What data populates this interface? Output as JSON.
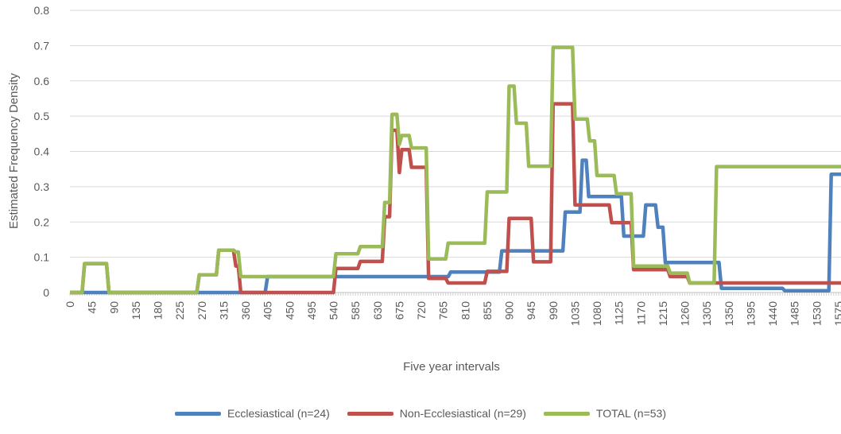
{
  "chart_data": {
    "type": "line",
    "title": "",
    "xlabel": "Five year intervals",
    "ylabel": "Estimated Frequency Density",
    "ylim": [
      0,
      0.8
    ],
    "xlim": [
      0,
      1580
    ],
    "y_ticks": [
      "0",
      "0.1",
      "0.2",
      "0.3",
      "0.4",
      "0.5",
      "0.6",
      "0.7",
      "0.8"
    ],
    "x_ticks": [
      "0",
      "45",
      "90",
      "135",
      "180",
      "225",
      "270",
      "315",
      "360",
      "405",
      "450",
      "495",
      "540",
      "585",
      "630",
      "675",
      "720",
      "765",
      "810",
      "855",
      "900",
      "945",
      "990",
      "1035",
      "1080",
      "1125",
      "1170",
      "1215",
      "1260",
      "1305",
      "1350",
      "1395",
      "1440",
      "1485",
      "1530",
      "1575"
    ],
    "grid": true,
    "legend_position": "bottom",
    "series": [
      {
        "name": "Ecclesiastical (n=24)",
        "color": "#4F81BD",
        "points": [
          [
            0,
            0
          ],
          [
            400,
            0
          ],
          [
            405,
            0.045
          ],
          [
            415,
            0.045
          ],
          [
            585,
            0.045
          ],
          [
            590,
            0.045
          ],
          [
            775,
            0.045
          ],
          [
            780,
            0.058
          ],
          [
            880,
            0.058
          ],
          [
            885,
            0.118
          ],
          [
            955,
            0.118
          ],
          [
            960,
            0.118
          ],
          [
            1010,
            0.118
          ],
          [
            1015,
            0.228
          ],
          [
            1045,
            0.228
          ],
          [
            1050,
            0.375
          ],
          [
            1058,
            0.375
          ],
          [
            1063,
            0.272
          ],
          [
            1130,
            0.272
          ],
          [
            1135,
            0.16
          ],
          [
            1175,
            0.16
          ],
          [
            1180,
            0.248
          ],
          [
            1200,
            0.248
          ],
          [
            1205,
            0.185
          ],
          [
            1215,
            0.185
          ],
          [
            1220,
            0.085
          ],
          [
            1300,
            0.085
          ],
          [
            1305,
            0.085
          ],
          [
            1330,
            0.085
          ],
          [
            1335,
            0.012
          ],
          [
            1460,
            0.012
          ],
          [
            1465,
            0.005
          ],
          [
            1555,
            0.005
          ],
          [
            1560,
            0.335
          ],
          [
            1580,
            0.335
          ]
        ]
      },
      {
        "name": "Non-Ecclesiastical (n=29)",
        "color": "#C0504D",
        "points": [
          [
            0,
            0
          ],
          [
            25,
            0
          ],
          [
            30,
            0.082
          ],
          [
            75,
            0.082
          ],
          [
            80,
            0
          ],
          [
            260,
            0
          ],
          [
            265,
            0.05
          ],
          [
            300,
            0.05
          ],
          [
            305,
            0.12
          ],
          [
            335,
            0.12
          ],
          [
            340,
            0.075
          ],
          [
            345,
            0.075
          ],
          [
            350,
            0
          ],
          [
            540,
            0
          ],
          [
            545,
            0.068
          ],
          [
            590,
            0.068
          ],
          [
            595,
            0.088
          ],
          [
            640,
            0.088
          ],
          [
            645,
            0.215
          ],
          [
            655,
            0.215
          ],
          [
            660,
            0.46
          ],
          [
            670,
            0.46
          ],
          [
            675,
            0.34
          ],
          [
            680,
            0.405
          ],
          [
            695,
            0.405
          ],
          [
            700,
            0.355
          ],
          [
            730,
            0.355
          ],
          [
            735,
            0.04
          ],
          [
            770,
            0.04
          ],
          [
            775,
            0.027
          ],
          [
            850,
            0.027
          ],
          [
            855,
            0.06
          ],
          [
            895,
            0.06
          ],
          [
            900,
            0.21
          ],
          [
            945,
            0.21
          ],
          [
            950,
            0.087
          ],
          [
            985,
            0.087
          ],
          [
            990,
            0.535
          ],
          [
            1030,
            0.535
          ],
          [
            1035,
            0.248
          ],
          [
            1105,
            0.248
          ],
          [
            1110,
            0.198
          ],
          [
            1150,
            0.198
          ],
          [
            1155,
            0.065
          ],
          [
            1225,
            0.065
          ],
          [
            1230,
            0.045
          ],
          [
            1265,
            0.045
          ],
          [
            1270,
            0.027
          ],
          [
            1580,
            0.027
          ]
        ]
      },
      {
        "name": "TOTAL (n=53)",
        "color": "#9BBB59",
        "points": [
          [
            0,
            0
          ],
          [
            25,
            0
          ],
          [
            30,
            0.082
          ],
          [
            75,
            0.082
          ],
          [
            80,
            0
          ],
          [
            260,
            0
          ],
          [
            265,
            0.05
          ],
          [
            300,
            0.05
          ],
          [
            305,
            0.12
          ],
          [
            335,
            0.12
          ],
          [
            340,
            0.115
          ],
          [
            345,
            0.115
          ],
          [
            350,
            0.045
          ],
          [
            540,
            0.045
          ],
          [
            545,
            0.11
          ],
          [
            590,
            0.11
          ],
          [
            595,
            0.13
          ],
          [
            640,
            0.13
          ],
          [
            645,
            0.255
          ],
          [
            655,
            0.255
          ],
          [
            660,
            0.505
          ],
          [
            670,
            0.505
          ],
          [
            675,
            0.42
          ],
          [
            680,
            0.445
          ],
          [
            695,
            0.445
          ],
          [
            700,
            0.41
          ],
          [
            730,
            0.41
          ],
          [
            735,
            0.095
          ],
          [
            770,
            0.095
          ],
          [
            775,
            0.14
          ],
          [
            850,
            0.14
          ],
          [
            855,
            0.285
          ],
          [
            895,
            0.285
          ],
          [
            900,
            0.585
          ],
          [
            910,
            0.585
          ],
          [
            915,
            0.48
          ],
          [
            935,
            0.48
          ],
          [
            940,
            0.358
          ],
          [
            985,
            0.358
          ],
          [
            990,
            0.695
          ],
          [
            1030,
            0.695
          ],
          [
            1035,
            0.492
          ],
          [
            1060,
            0.492
          ],
          [
            1065,
            0.43
          ],
          [
            1075,
            0.43
          ],
          [
            1080,
            0.332
          ],
          [
            1115,
            0.332
          ],
          [
            1120,
            0.28
          ],
          [
            1150,
            0.28
          ],
          [
            1155,
            0.075
          ],
          [
            1225,
            0.075
          ],
          [
            1230,
            0.055
          ],
          [
            1265,
            0.055
          ],
          [
            1270,
            0.027
          ],
          [
            1320,
            0.027
          ],
          [
            1325,
            0.357
          ],
          [
            1580,
            0.357
          ]
        ]
      }
    ]
  }
}
